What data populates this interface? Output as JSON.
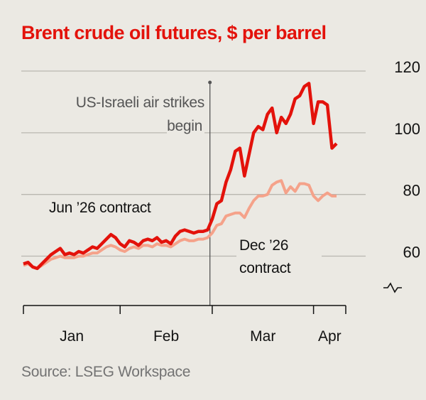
{
  "chart_data": {
    "type": "line",
    "title": "Brent crude oil futures, $ per barrel",
    "source": "Source: LSEG Workspace",
    "x": [
      0,
      1,
      2,
      3,
      4,
      5,
      6,
      7,
      8,
      9,
      10,
      11,
      12,
      13,
      14,
      15,
      16,
      17,
      18,
      19,
      20,
      21,
      22,
      23,
      24,
      25,
      26,
      27,
      28,
      29,
      30,
      31,
      32,
      33,
      34,
      35,
      36,
      37,
      38,
      39,
      40,
      41,
      42,
      43,
      44,
      45,
      46,
      47,
      48,
      49,
      50,
      51,
      52,
      53,
      54,
      55,
      56,
      57,
      58,
      59,
      60,
      61,
      62,
      63,
      64,
      65,
      66,
      67,
      68
    ],
    "series": [
      {
        "name": "Jun ’26 contract",
        "color": "#e3120b",
        "values": [
          57.5,
          58,
          56.5,
          56,
          57.5,
          59,
          60.5,
          61.5,
          62.5,
          60.5,
          61,
          60.5,
          61.5,
          61,
          62,
          63,
          62.5,
          64,
          65.5,
          67,
          66,
          64,
          63,
          65,
          64.5,
          63.5,
          65,
          65.5,
          65,
          66,
          64.5,
          65,
          64,
          66.5,
          68,
          68.5,
          68,
          67.5,
          68,
          68,
          68.5,
          72,
          77,
          78,
          84,
          88,
          94,
          95,
          86,
          93,
          100,
          102,
          101,
          106,
          108,
          100,
          105,
          103,
          106,
          111,
          112,
          115,
          116,
          103,
          110,
          110,
          109,
          95,
          96.5
        ]
      },
      {
        "name": "Dec ’26 contract",
        "color": "#f5a28a",
        "values": [
          57,
          57.5,
          56.5,
          56,
          57,
          58,
          59,
          59.5,
          60,
          59.5,
          59.5,
          59.5,
          60,
          60,
          60.5,
          61,
          61,
          62,
          63,
          63.5,
          63,
          62,
          61.5,
          62.5,
          63,
          62.5,
          63.5,
          63.5,
          63,
          64,
          63.5,
          63.5,
          63,
          64,
          65,
          65.5,
          65,
          65,
          65.5,
          65.5,
          66,
          67.5,
          70,
          70.5,
          73,
          73.5,
          74,
          74,
          72.5,
          75.5,
          78,
          79.5,
          79.5,
          80,
          83,
          84,
          84.5,
          80.5,
          82.5,
          81,
          83.5,
          83.5,
          83,
          79.5,
          78,
          79.5,
          80.5,
          79.5,
          79.5
        ]
      }
    ],
    "xlim": [
      0,
      70
    ],
    "xticks": [
      0,
      21,
      41,
      63,
      70
    ],
    "xlabels": [
      {
        "value": 10.5,
        "label": "Jan"
      },
      {
        "value": 31,
        "label": "Feb"
      },
      {
        "value": 52,
        "label": "Mar"
      },
      {
        "value": 66.5,
        "label": "Apr"
      }
    ],
    "ylim": [
      44,
      120
    ],
    "yticks": [
      60,
      80,
      100,
      120
    ],
    "grid": true,
    "annotation": {
      "text": "US-Israeli air strikes begin",
      "x": 40.5
    }
  }
}
